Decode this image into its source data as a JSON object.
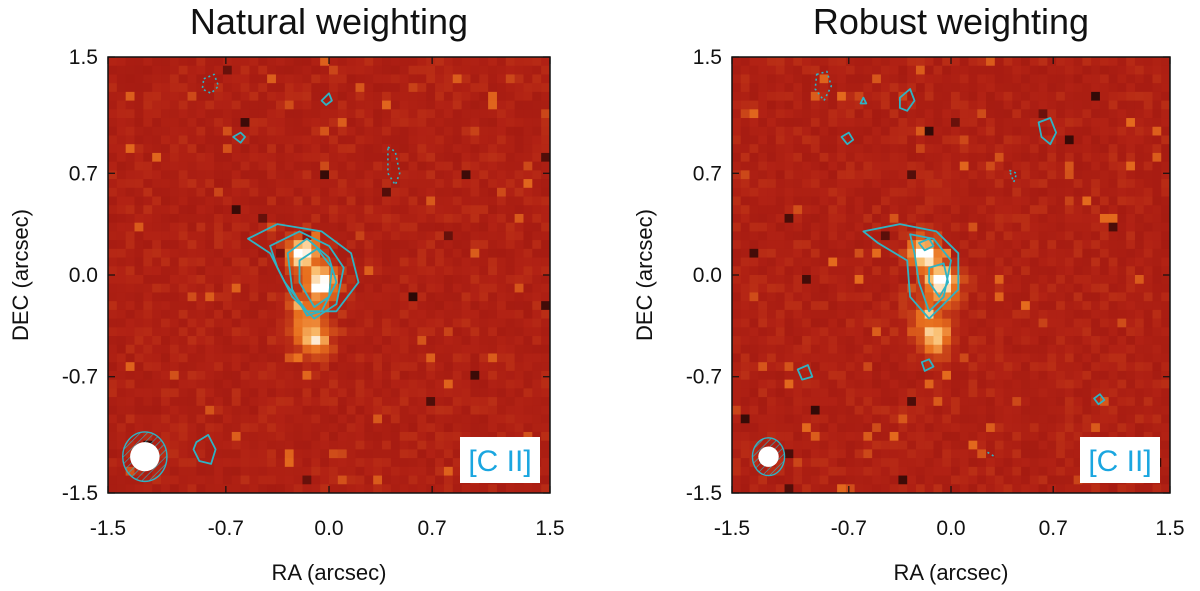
{
  "chart_data": [
    {
      "type": "heatmap",
      "title": "Natural weighting",
      "xlabel": "RA (arcsec)",
      "ylabel": "DEC (arcsec)",
      "xlim": [
        -1.5,
        1.5
      ],
      "ylim": [
        -1.5,
        1.5
      ],
      "x_ticks": [
        -1.5,
        -0.7,
        0.0,
        0.7,
        1.5
      ],
      "y_ticks": [
        -1.5,
        -0.7,
        0.0,
        0.7,
        1.5
      ],
      "x_tick_labels": [
        "-1.5",
        "-0.7",
        "0.0",
        "0.7",
        "1.5"
      ],
      "y_tick_labels": [
        "-1.5",
        "-0.7",
        "0.0",
        "0.7",
        "1.5"
      ],
      "label": "[C II]",
      "colors": {
        "background": "#a8160f",
        "contour": "#2fb3c4",
        "label": "#1aa6e0"
      },
      "emission_peaks": [
        {
          "x": -0.18,
          "y": 0.15,
          "intensity": 1.0
        },
        {
          "x": -0.05,
          "y": -0.05,
          "intensity": 1.0
        },
        {
          "x": -0.1,
          "y": -0.45,
          "intensity": 0.6
        }
      ],
      "contours": [
        {
          "style": "solid",
          "points": [
            [
              -0.55,
              0.25
            ],
            [
              -0.35,
              0.35
            ],
            [
              -0.05,
              0.3
            ],
            [
              0.15,
              0.15
            ],
            [
              0.2,
              -0.05
            ],
            [
              0.05,
              -0.25
            ],
            [
              -0.15,
              -0.25
            ],
            [
              -0.3,
              -0.05
            ],
            [
              -0.4,
              0.15
            ]
          ]
        },
        {
          "style": "solid",
          "points": [
            [
              -0.4,
              0.2
            ],
            [
              -0.2,
              0.3
            ],
            [
              0.0,
              0.2
            ],
            [
              0.1,
              0.05
            ],
            [
              0.05,
              -0.2
            ],
            [
              -0.1,
              -0.3
            ],
            [
              -0.25,
              -0.15
            ],
            [
              -0.35,
              0.05
            ]
          ]
        },
        {
          "style": "solid",
          "points": [
            [
              -0.28,
              0.15
            ],
            [
              -0.15,
              0.25
            ],
            [
              0.0,
              0.12
            ],
            [
              0.05,
              -0.05
            ],
            [
              -0.05,
              -0.25
            ],
            [
              -0.15,
              -0.28
            ],
            [
              -0.25,
              -0.1
            ]
          ]
        },
        {
          "style": "solid",
          "points": [
            [
              -0.2,
              0.1
            ],
            [
              -0.08,
              0.18
            ],
            [
              0.02,
              0.05
            ],
            [
              0.0,
              -0.15
            ],
            [
              -0.1,
              -0.22
            ],
            [
              -0.2,
              -0.05
            ]
          ]
        },
        {
          "style": "solid",
          "points": [
            [
              -0.9,
              -1.15
            ],
            [
              -0.82,
              -1.1
            ],
            [
              -0.77,
              -1.2
            ],
            [
              -0.8,
              -1.3
            ],
            [
              -0.88,
              -1.28
            ],
            [
              -0.92,
              -1.2
            ]
          ]
        },
        {
          "style": "solid",
          "points": [
            [
              -0.65,
              0.95
            ],
            [
              -0.6,
              0.98
            ],
            [
              -0.57,
              0.95
            ],
            [
              -0.6,
              0.91
            ]
          ]
        },
        {
          "style": "solid",
          "points": [
            [
              -0.05,
              1.2
            ],
            [
              0.0,
              1.25
            ],
            [
              0.02,
              1.2
            ],
            [
              -0.02,
              1.17
            ]
          ]
        },
        {
          "style": "dotted",
          "points": [
            [
              -0.85,
              1.35
            ],
            [
              -0.78,
              1.38
            ],
            [
              -0.75,
              1.3
            ],
            [
              -0.8,
              1.25
            ],
            [
              -0.86,
              1.28
            ]
          ]
        },
        {
          "style": "dotted",
          "points": [
            [
              0.4,
              0.88
            ],
            [
              0.45,
              0.85
            ],
            [
              0.48,
              0.7
            ],
            [
              0.45,
              0.62
            ],
            [
              0.4,
              0.7
            ]
          ]
        }
      ],
      "beam": {
        "x": -1.25,
        "y": -1.25,
        "outer": [
          0.15,
          0.17
        ],
        "inner": [
          0.1,
          0.1
        ]
      }
    },
    {
      "type": "heatmap",
      "title": "Robust weighting",
      "xlabel": "RA (arcsec)",
      "ylabel": "DEC (arcsec)",
      "xlim": [
        -1.5,
        1.5
      ],
      "ylim": [
        -1.5,
        1.5
      ],
      "x_ticks": [
        -1.5,
        -0.7,
        0.0,
        0.7,
        1.5
      ],
      "y_ticks": [
        -1.5,
        -0.7,
        0.0,
        0.7,
        1.5
      ],
      "x_tick_labels": [
        "-1.5",
        "-0.7",
        "0.0",
        "0.7",
        "1.5"
      ],
      "y_tick_labels": [
        "-1.5",
        "-0.7",
        "0.0",
        "0.7",
        "1.5"
      ],
      "label": "[C II]",
      "colors": {
        "background": "#a8160f",
        "contour": "#2fb3c4",
        "label": "#1aa6e0"
      },
      "emission_peaks": [
        {
          "x": -0.18,
          "y": 0.15,
          "intensity": 1.0
        },
        {
          "x": -0.05,
          "y": -0.05,
          "intensity": 1.0
        },
        {
          "x": -0.1,
          "y": -0.45,
          "intensity": 0.6
        }
      ],
      "contours": [
        {
          "style": "solid",
          "points": [
            [
              -0.6,
              0.3
            ],
            [
              -0.35,
              0.35
            ],
            [
              -0.1,
              0.3
            ],
            [
              0.05,
              0.15
            ],
            [
              0.05,
              -0.1
            ],
            [
              -0.15,
              -0.3
            ],
            [
              -0.28,
              -0.15
            ],
            [
              -0.3,
              0.1
            ],
            [
              -0.5,
              0.22
            ]
          ]
        },
        {
          "style": "solid",
          "points": [
            [
              -0.28,
              0.28
            ],
            [
              -0.12,
              0.25
            ],
            [
              0.0,
              0.1
            ],
            [
              -0.05,
              -0.15
            ],
            [
              -0.15,
              -0.25
            ],
            [
              -0.22,
              -0.05
            ],
            [
              -0.25,
              0.15
            ]
          ]
        },
        {
          "style": "solid",
          "points": [
            [
              -0.22,
              0.22
            ],
            [
              -0.15,
              0.25
            ],
            [
              -0.12,
              0.2
            ],
            [
              -0.18,
              0.17
            ]
          ]
        },
        {
          "style": "solid",
          "points": [
            [
              -0.15,
              0.05
            ],
            [
              -0.05,
              0.08
            ],
            [
              -0.02,
              -0.05
            ],
            [
              -0.08,
              -0.15
            ],
            [
              -0.15,
              -0.05
            ]
          ]
        },
        {
          "style": "solid",
          "points": [
            [
              -0.2,
              -0.6
            ],
            [
              -0.15,
              -0.58
            ],
            [
              -0.12,
              -0.63
            ],
            [
              -0.18,
              -0.66
            ]
          ]
        },
        {
          "style": "solid",
          "points": [
            [
              -0.35,
              1.22
            ],
            [
              -0.28,
              1.28
            ],
            [
              -0.25,
              1.2
            ],
            [
              -0.3,
              1.13
            ],
            [
              -0.35,
              1.15
            ]
          ]
        },
        {
          "style": "solid",
          "points": [
            [
              0.6,
              1.05
            ],
            [
              0.68,
              1.08
            ],
            [
              0.72,
              0.98
            ],
            [
              0.68,
              0.9
            ],
            [
              0.62,
              0.95
            ]
          ]
        },
        {
          "style": "solid",
          "points": [
            [
              -1.05,
              -0.65
            ],
            [
              -0.98,
              -0.62
            ],
            [
              -0.95,
              -0.7
            ],
            [
              -1.02,
              -0.72
            ]
          ]
        },
        {
          "style": "solid",
          "points": [
            [
              -0.75,
              0.95
            ],
            [
              -0.7,
              0.98
            ],
            [
              -0.67,
              0.93
            ],
            [
              -0.71,
              0.9
            ]
          ]
        },
        {
          "style": "solid",
          "points": [
            [
              -0.62,
              1.18
            ],
            [
              -0.6,
              1.22
            ],
            [
              -0.58,
              1.18
            ]
          ]
        },
        {
          "style": "solid",
          "points": [
            [
              0.98,
              -0.85
            ],
            [
              1.02,
              -0.82
            ],
            [
              1.05,
              -0.86
            ],
            [
              1.01,
              -0.89
            ]
          ]
        },
        {
          "style": "dotted",
          "points": [
            [
              -0.92,
              1.38
            ],
            [
              -0.85,
              1.4
            ],
            [
              -0.82,
              1.3
            ],
            [
              -0.87,
              1.2
            ],
            [
              -0.93,
              1.28
            ]
          ]
        },
        {
          "style": "dotted",
          "points": [
            [
              0.4,
              0.72
            ],
            [
              0.45,
              0.7
            ],
            [
              0.43,
              0.64
            ]
          ]
        },
        {
          "style": "dotted",
          "points": [
            [
              0.25,
              -1.22
            ],
            [
              0.3,
              -1.25
            ]
          ]
        }
      ],
      "beam": {
        "x": -1.25,
        "y": -1.25,
        "outer": [
          0.11,
          0.13
        ],
        "inner": [
          0.07,
          0.07
        ]
      }
    }
  ]
}
